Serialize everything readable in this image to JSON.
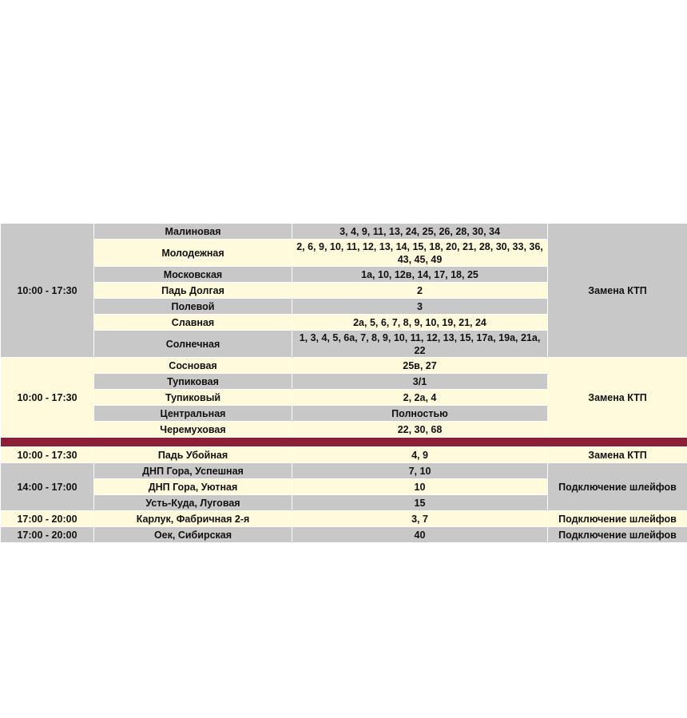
{
  "colors": {
    "gray": "#c8c8c8",
    "cream": "#fffadc",
    "separator": "#8b1f35"
  },
  "groups": [
    {
      "time": "10:00 - 17:30",
      "work": "Замена КТП",
      "tone": "g",
      "rows": [
        {
          "street": "Малиновая",
          "houses": "3, 4, 9, 11, 13, 24, 25, 26, 28, 30, 34",
          "tone": "g"
        },
        {
          "street": "Молодежная",
          "houses": "2, 6, 9, 10, 11, 12, 13, 14, 15, 18, 20, 21, 28, 30, 33, 36, 43, 45, 49",
          "tone": "c",
          "tall": true
        },
        {
          "street": "Московская",
          "houses": "1а, 10, 12в, 14, 17, 18, 25",
          "tone": "g"
        },
        {
          "street": "Падь Долгая",
          "houses": "2",
          "tone": "c"
        },
        {
          "street": "Полевой",
          "houses": "3",
          "tone": "g"
        },
        {
          "street": "Славная",
          "houses": "2а, 5, 6, 7, 8, 9, 10, 19, 21, 24",
          "tone": "c"
        },
        {
          "street": "Солнечная",
          "houses": "1, 3, 4, 5, 6а, 7, 8, 9, 10, 11, 12, 13, 15, 17а, 19а, 21а, 22",
          "tone": "g",
          "tall": true
        }
      ]
    },
    {
      "time": "10:00 - 17:30",
      "work": "Замена КТП",
      "tone": "c",
      "rows": [
        {
          "street": "Сосновая",
          "houses": "25в, 27",
          "tone": "c"
        },
        {
          "street": "Тупиковая",
          "houses": "3/1",
          "tone": "g"
        },
        {
          "street": "Тупиковый",
          "houses": "2, 2а, 4",
          "tone": "c"
        },
        {
          "street": "Центральная",
          "houses": "Полностью",
          "tone": "g"
        },
        {
          "street": "Черемуховая",
          "houses": "22, 30, 68",
          "tone": "c"
        }
      ]
    },
    {
      "separator": true
    },
    {
      "time": "10:00 - 17:30",
      "work": "Замена КТП",
      "tone": "c",
      "rows": [
        {
          "street": "Падь Убойная",
          "houses": "4, 9",
          "tone": "c"
        }
      ]
    },
    {
      "time": "14:00 - 17:00",
      "work": "Подключение шлейфов",
      "tone": "g",
      "rows": [
        {
          "street": "ДНП Гора, Успешная",
          "houses": "7, 10",
          "tone": "g"
        },
        {
          "street": "ДНП Гора, Уютная",
          "houses": "10",
          "tone": "c"
        },
        {
          "street": "Усть-Куда, Луговая",
          "houses": "15",
          "tone": "g"
        }
      ]
    },
    {
      "time": "17:00 - 20:00",
      "work": "Подключение шлейфов",
      "tone": "c",
      "rows": [
        {
          "street": "Карлук, Фабричная 2-я",
          "houses": "3, 7",
          "tone": "c"
        }
      ]
    },
    {
      "time": "17:00 - 20:00",
      "work": "Подключение шлейфов",
      "tone": "g",
      "rows": [
        {
          "street": "Оек, Сибирская",
          "houses": "40",
          "tone": "g"
        }
      ]
    }
  ]
}
